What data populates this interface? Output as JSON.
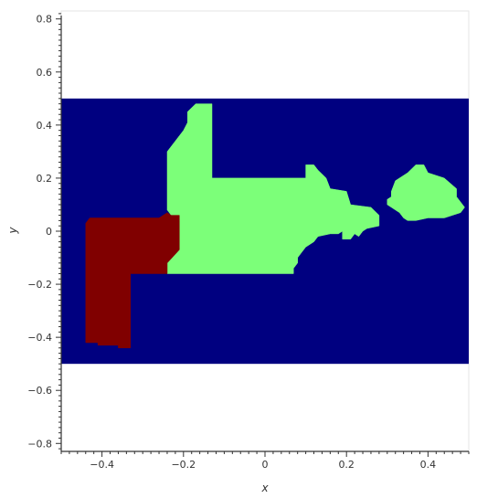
{
  "chart_data": {
    "type": "heatmap",
    "title": "",
    "xlabel": "x",
    "ylabel": "y",
    "xlim": [
      -0.5,
      0.5
    ],
    "ylim": [
      -0.83,
      0.83
    ],
    "image_extent": {
      "x": [
        -0.5,
        0.5
      ],
      "y": [
        -0.5,
        0.5
      ]
    },
    "grid": false,
    "background_color": "#000080",
    "xticks": [
      -0.4,
      -0.2,
      0,
      0.2,
      0.4
    ],
    "xtick_labels": [
      "−0.4",
      "−0.2",
      "0",
      "0.2",
      "0.4"
    ],
    "yticks": [
      0.8,
      0.6,
      0.4,
      0.2,
      0,
      -0.2,
      -0.4,
      -0.6,
      -0.8
    ],
    "ytick_labels": [
      "0.8",
      "0.6",
      "0.4",
      "0.2",
      "0",
      "−0.2",
      "−0.4",
      "−0.6",
      "−0.8"
    ],
    "regions": [
      {
        "color": "#7cff79",
        "outline": [
          [
            -0.24,
            0.18
          ],
          [
            -0.24,
            0.21
          ],
          [
            -0.24,
            0.3
          ],
          [
            -0.22,
            0.34
          ],
          [
            -0.2,
            0.38
          ],
          [
            -0.19,
            0.41
          ],
          [
            -0.19,
            0.45
          ],
          [
            -0.17,
            0.48
          ],
          [
            -0.13,
            0.48
          ],
          [
            -0.13,
            0.2
          ],
          [
            0.1,
            0.2
          ],
          [
            0.1,
            0.25
          ],
          [
            0.12,
            0.25
          ],
          [
            0.13,
            0.23
          ],
          [
            0.15,
            0.2
          ],
          [
            0.16,
            0.16
          ],
          [
            0.2,
            0.15
          ],
          [
            0.21,
            0.1
          ],
          [
            0.26,
            0.09
          ],
          [
            0.28,
            0.06
          ],
          [
            0.28,
            0.02
          ],
          [
            0.25,
            0.01
          ],
          [
            0.24,
            0
          ],
          [
            0.23,
            -0.02
          ],
          [
            0.22,
            -0.01
          ],
          [
            0.21,
            -0.03
          ],
          [
            0.19,
            -0.03
          ],
          [
            0.19,
            0
          ],
          [
            0.18,
            -0.01
          ],
          [
            0.16,
            -0.01
          ],
          [
            0.13,
            -0.02
          ],
          [
            0.12,
            -0.04
          ],
          [
            0.1,
            -0.06
          ],
          [
            0.09,
            -0.08
          ],
          [
            0.08,
            -0.1
          ],
          [
            0.08,
            -0.12
          ],
          [
            0.07,
            -0.14
          ],
          [
            0.07,
            -0.16
          ],
          [
            -0.24,
            -0.16
          ],
          [
            -0.24,
            -0.12
          ],
          [
            -0.21,
            -0.07
          ],
          [
            -0.21,
            0.04
          ],
          [
            -0.23,
            0.06
          ],
          [
            -0.24,
            0.08
          ]
        ]
      },
      {
        "color": "#7cff79",
        "outline": [
          [
            0.31,
            0.13
          ],
          [
            0.31,
            0.15
          ],
          [
            0.32,
            0.19
          ],
          [
            0.35,
            0.22
          ],
          [
            0.37,
            0.25
          ],
          [
            0.39,
            0.25
          ],
          [
            0.4,
            0.22
          ],
          [
            0.44,
            0.2
          ],
          [
            0.47,
            0.16
          ],
          [
            0.47,
            0.13
          ],
          [
            0.48,
            0.11
          ],
          [
            0.49,
            0.09
          ],
          [
            0.48,
            0.07
          ],
          [
            0.46,
            0.06
          ],
          [
            0.44,
            0.05
          ],
          [
            0.4,
            0.05
          ],
          [
            0.37,
            0.04
          ],
          [
            0.35,
            0.04
          ],
          [
            0.34,
            0.05
          ],
          [
            0.33,
            0.07
          ],
          [
            0.32,
            0.08
          ],
          [
            0.31,
            0.09
          ],
          [
            0.3,
            0.1
          ],
          [
            0.3,
            0.12
          ]
        ]
      },
      {
        "color": "#800000",
        "outline": [
          [
            -0.44,
            0.03
          ],
          [
            -0.44,
            -0.42
          ],
          [
            -0.41,
            -0.42
          ],
          [
            -0.41,
            -0.43
          ],
          [
            -0.36,
            -0.43
          ],
          [
            -0.36,
            -0.44
          ],
          [
            -0.33,
            -0.44
          ],
          [
            -0.33,
            -0.16
          ],
          [
            -0.24,
            -0.16
          ],
          [
            -0.24,
            -0.12
          ],
          [
            -0.21,
            -0.07
          ],
          [
            -0.21,
            0.04
          ],
          [
            -0.21,
            0.06
          ],
          [
            -0.23,
            0.06
          ],
          [
            -0.24,
            0.07
          ],
          [
            -0.26,
            0.05
          ],
          [
            -0.43,
            0.05
          ]
        ]
      }
    ]
  }
}
